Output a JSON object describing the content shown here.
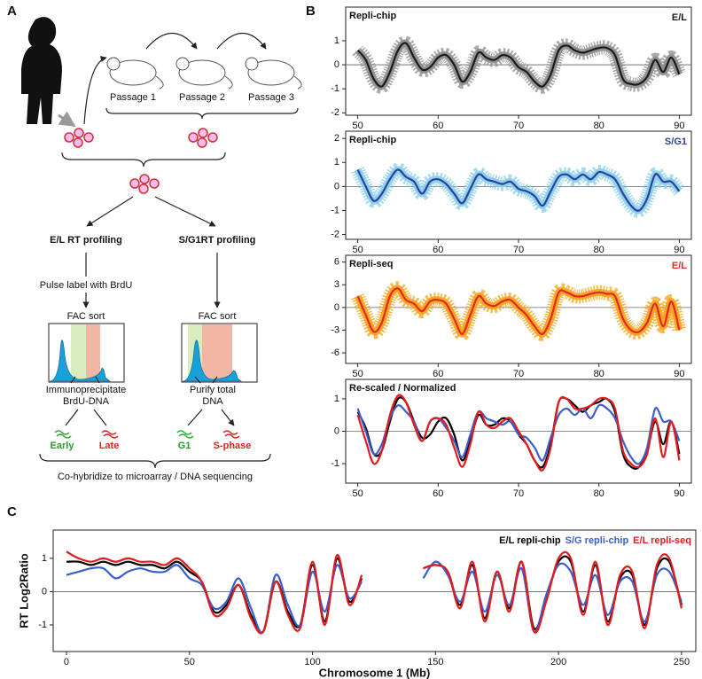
{
  "panel_labels": [
    "A",
    "B",
    "C"
  ],
  "diagram": {
    "passages": [
      "Passage 1",
      "Passage 2",
      "Passage 3"
    ],
    "left_branch": {
      "title": "E/L RT profiling",
      "step": "Pulse label with BrdU",
      "sort": "FAC sort",
      "purify": [
        "Immunoprecipitate",
        "BrdU-DNA"
      ],
      "fractions": [
        "Early",
        "Late"
      ]
    },
    "right_branch": {
      "title": "S/G1RT profiling",
      "sort": "FAC sort",
      "purify": [
        "Purify total",
        "DNA"
      ],
      "fractions": [
        "G1",
        "S-phase"
      ]
    },
    "footer": "Co-hybridize to microarray / DNA sequencing"
  },
  "chart_data": [
    {
      "type": "scatter",
      "title": "Repli-chip",
      "x": [
        50,
        51,
        52,
        53,
        54,
        55,
        56,
        57,
        58,
        59,
        60,
        61,
        62,
        63,
        64,
        65,
        66,
        67,
        68,
        69,
        70,
        71,
        72,
        73,
        74,
        75,
        76,
        77,
        78,
        79,
        80,
        81,
        82,
        83,
        84,
        85,
        86,
        87,
        88,
        89,
        90
      ],
      "series": [
        {
          "name": "E/L",
          "color": "#1a1a1a",
          "point_color": "#8c8c8c",
          "values": [
            0.6,
            0.2,
            -0.6,
            -0.9,
            -0.3,
            0.6,
            0.9,
            0.3,
            -0.2,
            -0.1,
            0.3,
            0.4,
            0.0,
            -0.7,
            -0.3,
            0.5,
            0.3,
            0.2,
            0.4,
            0.3,
            -0.1,
            -0.3,
            -0.7,
            -0.9,
            -0.4,
            0.6,
            0.8,
            0.6,
            0.5,
            0.6,
            0.7,
            0.7,
            0.4,
            -0.6,
            -0.8,
            -0.8,
            -0.5,
            0.2,
            -0.3,
            0.3,
            -0.4
          ]
        }
      ],
      "xlim": [
        48.5,
        91.5
      ],
      "xticks": [
        50,
        60,
        70,
        80,
        90
      ],
      "ylim": [
        -2.1,
        2.4
      ],
      "yticks": [
        -2,
        -1,
        0,
        1
      ]
    },
    {
      "type": "scatter",
      "title": "Repli-chip",
      "x": [
        50,
        51,
        52,
        53,
        54,
        55,
        56,
        57,
        58,
        59,
        60,
        61,
        62,
        63,
        64,
        65,
        66,
        67,
        68,
        69,
        70,
        71,
        72,
        73,
        74,
        75,
        76,
        77,
        78,
        79,
        80,
        81,
        82,
        83,
        84,
        85,
        86,
        87,
        88,
        89,
        90
      ],
      "series": [
        {
          "name": "S/G1",
          "color": "#2b3f9e",
          "point_color": "#87ceeb",
          "values": [
            0.7,
            0.0,
            -0.6,
            -0.3,
            0.3,
            0.7,
            0.4,
            0.2,
            -0.3,
            0.2,
            0.3,
            0.1,
            -0.3,
            -0.7,
            -0.1,
            0.5,
            0.3,
            0.2,
            0.1,
            0.2,
            -0.1,
            -0.2,
            -0.4,
            -0.8,
            -0.2,
            0.4,
            0.5,
            0.3,
            0.5,
            0.3,
            0.6,
            0.5,
            0.3,
            -0.3,
            -0.8,
            -1.0,
            -0.5,
            0.5,
            0.2,
            0.2,
            -0.2
          ]
        }
      ],
      "xlim": [
        48.5,
        91.5
      ],
      "xticks": [
        50,
        60,
        70,
        80,
        90
      ],
      "ylim": [
        -2.2,
        2.3
      ],
      "yticks": [
        -2,
        -1,
        0,
        1,
        2
      ]
    },
    {
      "type": "scatter",
      "title": "Repli-seq",
      "x": [
        50,
        51,
        52,
        53,
        54,
        55,
        56,
        57,
        58,
        59,
        60,
        61,
        62,
        63,
        64,
        65,
        66,
        67,
        68,
        69,
        70,
        71,
        72,
        73,
        74,
        75,
        76,
        77,
        78,
        79,
        80,
        81,
        82,
        83,
        84,
        85,
        86,
        87,
        88,
        89,
        90
      ],
      "series": [
        {
          "name": "E/L",
          "color": "#e8251e",
          "point_color": "#f5a31a",
          "values": [
            1.5,
            -1,
            -3.2,
            -2,
            1.5,
            2.5,
            1,
            0.5,
            -0.5,
            0.8,
            1,
            0.5,
            -1.5,
            -3.5,
            -1,
            1.5,
            0.5,
            0.2,
            0.8,
            1,
            0,
            -1,
            -2.5,
            -3.5,
            -1.5,
            2,
            2,
            1.5,
            1.5,
            1.8,
            2,
            1.8,
            1.5,
            -1.5,
            -3,
            -3.2,
            -2,
            0.5,
            -2.5,
            0.8,
            -3
          ]
        }
      ],
      "xlim": [
        48.5,
        91.5
      ],
      "xticks": [
        50,
        60,
        70,
        80,
        90
      ],
      "ylim": [
        -7.4,
        6.9
      ],
      "yticks": [
        -6,
        -3,
        0,
        3,
        6
      ]
    },
    {
      "type": "line",
      "title": "Re-scaled / Normalized",
      "x": [
        50,
        51,
        52,
        53,
        54,
        55,
        56,
        57,
        58,
        59,
        60,
        61,
        62,
        63,
        64,
        65,
        66,
        67,
        68,
        69,
        70,
        71,
        72,
        73,
        74,
        75,
        76,
        77,
        78,
        79,
        80,
        81,
        82,
        83,
        84,
        85,
        86,
        87,
        88,
        89,
        90
      ],
      "series": [
        {
          "color": "#000000",
          "values": [
            0.6,
            0.1,
            -0.7,
            -0.6,
            0.3,
            1.0,
            0.9,
            0.3,
            -0.2,
            -0.1,
            0.3,
            0.4,
            -0.1,
            -0.9,
            -0.3,
            0.5,
            0.2,
            0.2,
            0.4,
            0.3,
            -0.1,
            -0.4,
            -0.9,
            -1.1,
            -0.4,
            0.9,
            1.0,
            0.8,
            0.6,
            0.8,
            0.9,
            1.0,
            0.6,
            -0.7,
            -1.1,
            -1.1,
            -0.6,
            0.3,
            -0.4,
            0.3,
            -0.7
          ]
        },
        {
          "color": "#3a5fcd",
          "values": [
            0.7,
            0.0,
            -0.7,
            -0.4,
            0.4,
            0.8,
            0.6,
            0.3,
            -0.3,
            0.3,
            0.4,
            0.1,
            -0.3,
            -0.8,
            -0.1,
            0.6,
            0.4,
            0.3,
            0.2,
            0.3,
            -0.1,
            -0.2,
            -0.5,
            -0.9,
            -0.2,
            0.5,
            0.7,
            0.5,
            0.7,
            0.4,
            0.8,
            0.7,
            0.4,
            -0.3,
            -0.8,
            -1.0,
            -0.5,
            0.7,
            0.3,
            0.3,
            -0.3
          ]
        },
        {
          "color": "#e41a1c",
          "values": [
            0.5,
            -0.3,
            -1.0,
            -0.6,
            0.5,
            1.1,
            0.9,
            0.2,
            -0.3,
            0.3,
            0.4,
            0.2,
            -0.5,
            -1.1,
            -0.4,
            0.6,
            0.2,
            0.1,
            0.3,
            0.4,
            0.0,
            -0.4,
            -0.9,
            -1.2,
            -0.5,
            0.9,
            1.0,
            0.7,
            0.7,
            0.8,
            1.0,
            1.0,
            0.7,
            -0.6,
            -1.0,
            -1.1,
            -0.7,
            0.4,
            -0.8,
            0.3,
            -0.9
          ]
        }
      ],
      "xlim": [
        48.5,
        91.5
      ],
      "xticks": [
        50,
        60,
        70,
        80,
        90
      ],
      "ylim": [
        -1.6,
        1.6
      ],
      "yticks": [
        -1,
        0,
        1
      ]
    },
    {
      "type": "line",
      "x_label": "Chromosome 1 (Mb)",
      "y_label": "RT Log2Ratio",
      "x": [
        0,
        5,
        10,
        15,
        20,
        25,
        30,
        35,
        40,
        45,
        50,
        55,
        60,
        65,
        70,
        75,
        80,
        85,
        90,
        95,
        100,
        105,
        110,
        115,
        120,
        125,
        130,
        135,
        140,
        145,
        150,
        155,
        160,
        165,
        170,
        175,
        180,
        185,
        190,
        195,
        200,
        205,
        210,
        215,
        220,
        225,
        230,
        235,
        240,
        245,
        250
      ],
      "series": [
        {
          "name": "E/L repli-chip",
          "color": "#000000",
          "values": [
            0.9,
            0.9,
            0.8,
            0.9,
            0.8,
            0.9,
            0.8,
            0.8,
            0.7,
            0.9,
            0.6,
            0.3,
            -0.6,
            -0.4,
            0.2,
            -0.7,
            -1.2,
            0.3,
            -0.6,
            -1.0,
            0.8,
            -0.9,
            1.0,
            -0.3,
            0.4,
            null,
            null,
            null,
            null,
            0.7,
            0.8,
            0.6,
            -0.4,
            0.8,
            -0.8,
            0.6,
            -0.5,
            0.9,
            -1.1,
            -0.2,
            0.9,
            0.9,
            -0.6,
            0.8,
            -0.9,
            0.4,
            0.5,
            -1.0,
            0.7,
            0.9,
            -0.4
          ]
        },
        {
          "name": "S/G repli-chip",
          "color": "#3a5fcd",
          "values": [
            0.5,
            0.6,
            0.7,
            0.7,
            0.4,
            0.6,
            0.7,
            0.6,
            0.6,
            0.8,
            0.4,
            0.2,
            -0.5,
            -0.3,
            0.4,
            -0.5,
            -1.2,
            0.5,
            -0.4,
            -1.0,
            0.6,
            -0.6,
            0.8,
            -0.2,
            0.3,
            null,
            null,
            null,
            null,
            0.4,
            0.9,
            0.5,
            -0.3,
            0.6,
            -0.6,
            0.5,
            -0.4,
            0.7,
            -1.2,
            -0.1,
            0.8,
            0.6,
            -0.4,
            0.5,
            -0.7,
            0.3,
            0.3,
            -0.9,
            0.5,
            0.6,
            -0.3
          ]
        },
        {
          "name": "E/L repli-seq",
          "color": "#e41a1c",
          "values": [
            1.2,
            1.0,
            0.9,
            1.0,
            0.9,
            1.0,
            0.9,
            0.9,
            0.8,
            1.0,
            0.7,
            0.3,
            -0.7,
            -0.5,
            0.2,
            -0.8,
            -1.2,
            0.3,
            -0.7,
            -1.1,
            0.9,
            -1.0,
            1.1,
            -0.4,
            0.5,
            null,
            null,
            null,
            null,
            0.7,
            0.8,
            0.6,
            -0.5,
            0.9,
            -0.9,
            0.6,
            -0.6,
            0.9,
            -1.2,
            -0.3,
            1.0,
            1.0,
            -0.7,
            0.9,
            -1.0,
            0.5,
            0.6,
            -1.1,
            0.8,
            1.0,
            -0.5
          ]
        }
      ],
      "xlim": [
        -5.4,
        255.8
      ],
      "xticks": [
        0,
        50,
        100,
        150,
        200,
        250
      ],
      "ylim": [
        -1.8,
        1.85
      ],
      "yticks": [
        -1,
        0,
        1
      ]
    }
  ]
}
